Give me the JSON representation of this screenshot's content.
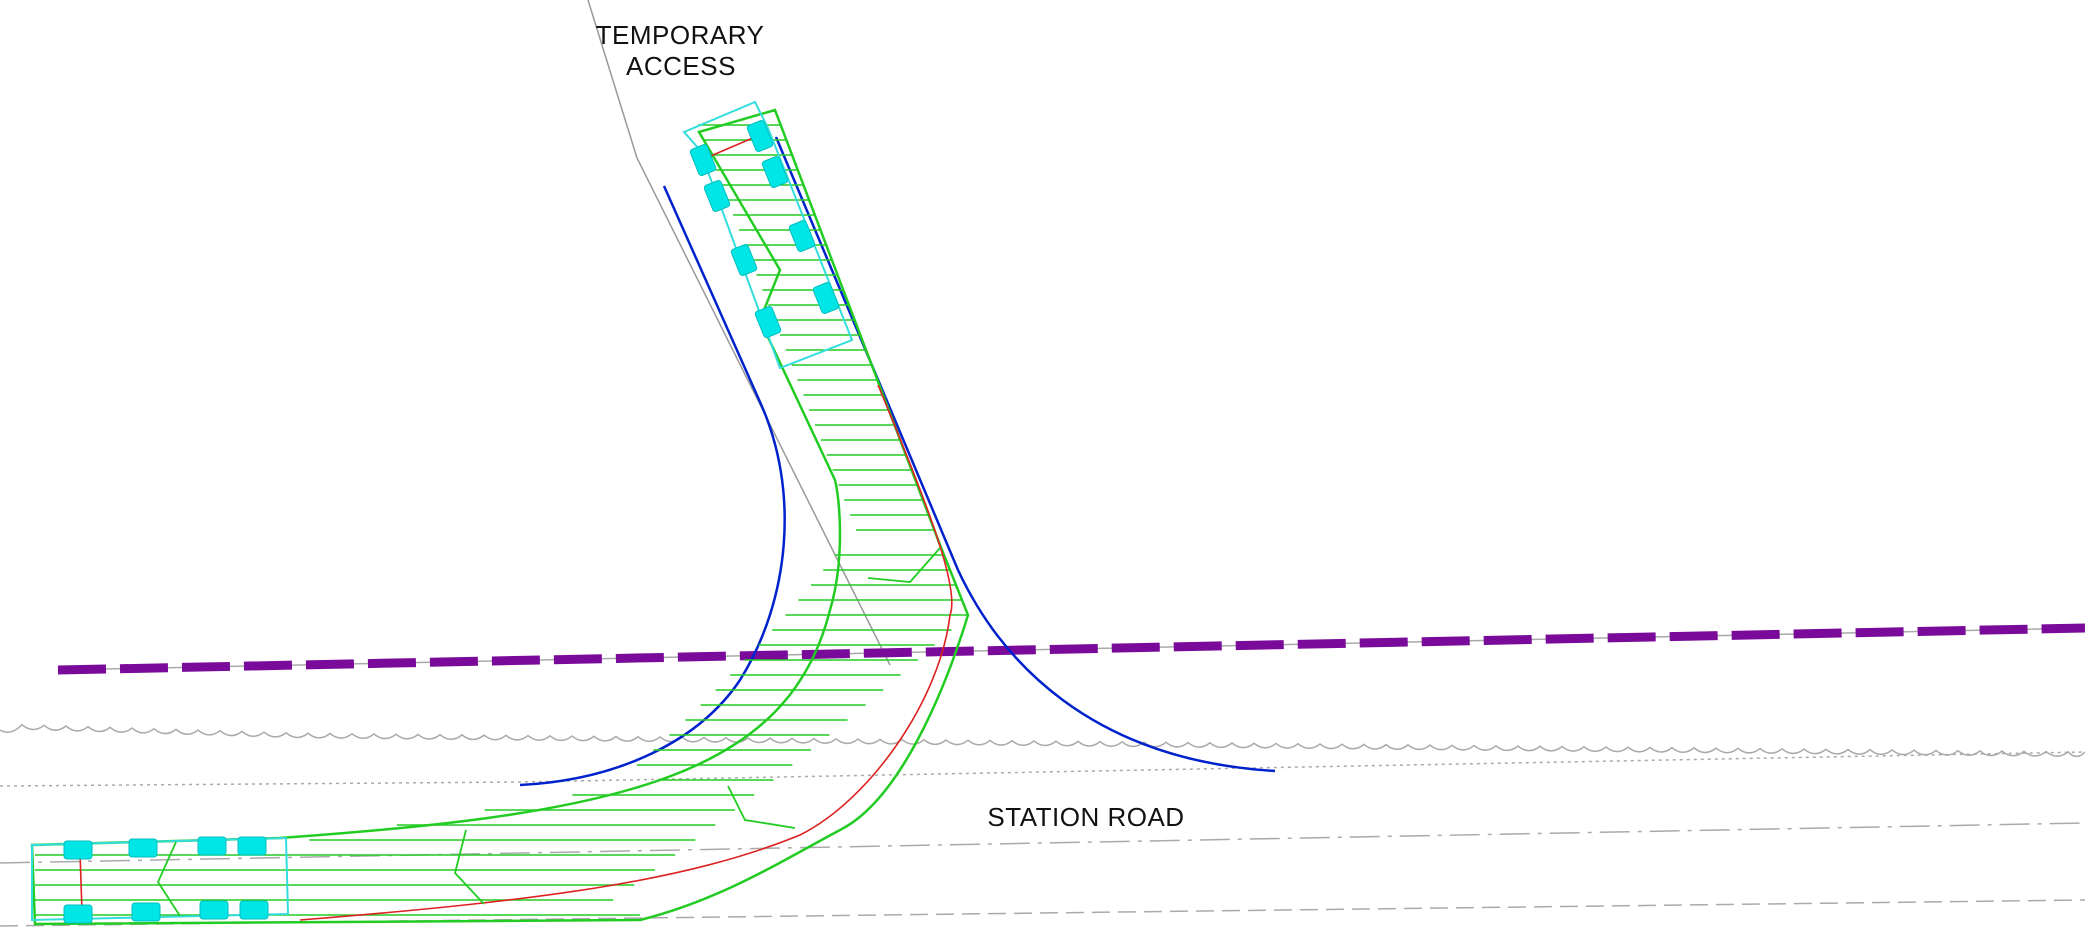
{
  "drawing": {
    "labels": {
      "temporary_access_line1": "TEMPORARY",
      "temporary_access_line2": "ACCESS",
      "station_road": "STATION ROAD"
    },
    "colors": {
      "swept_path": "#22cc22",
      "vehicle_body": "#33dddd",
      "vehicle_wheels": "#00e5e5",
      "wheel_path": "#dd2222",
      "kerb_line": "#0022cc",
      "boundary_line": "#7a0a9a",
      "road_edge": "#aaaaaa",
      "guide_line": "#999999"
    }
  }
}
